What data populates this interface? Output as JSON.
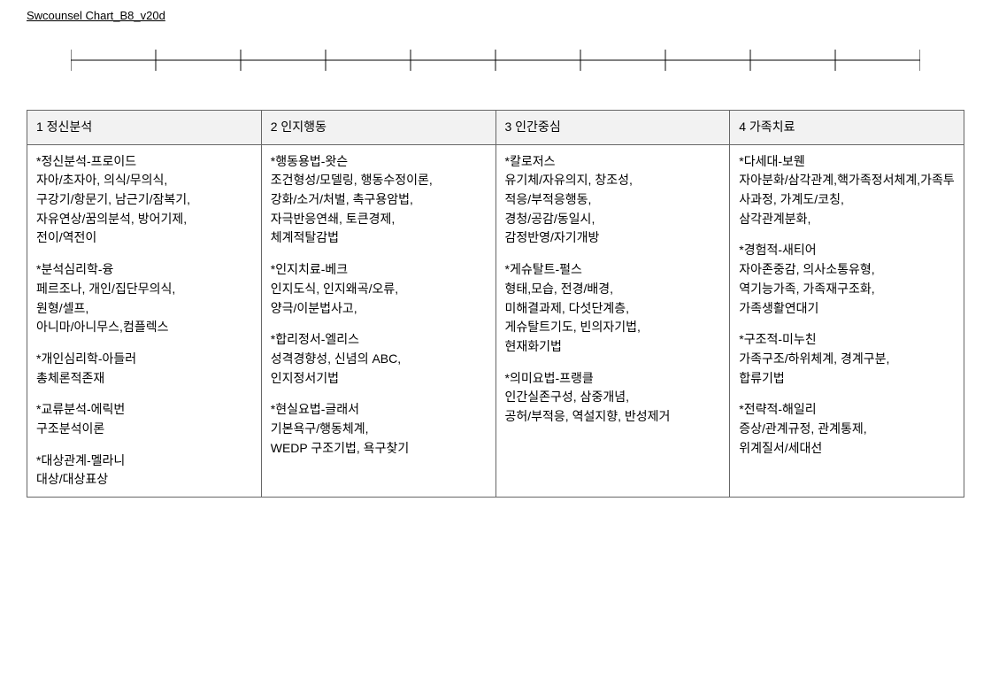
{
  "doc_title": "Swcounsel Chart_B8_v20d",
  "axis": {
    "tick_count": 11,
    "stroke": "#000000",
    "stroke_width": 1,
    "tick_height": 12
  },
  "table": {
    "border_color": "#666666",
    "header_bg": "#f2f2f2",
    "columns": [
      {
        "header": "1 정신분석"
      },
      {
        "header": "2 인지행동"
      },
      {
        "header": "3 인간중심"
      },
      {
        "header": "4 가족치료"
      }
    ],
    "cells": [
      [
        {
          "title": "*정신분석-프로이드",
          "lines": [
            "자아/초자아, 의식/무의식,",
            "구강기/항문기, 남근기/잠복기,",
            "자유연상/꿈의분석, 방어기제,",
            "전이/역전이"
          ]
        },
        {
          "title": "*분석심리학-융",
          "lines": [
            "페르조나, 개인/집단무의식,",
            "원형/셀프,",
            "아니마/아니무스,컴플렉스"
          ]
        },
        {
          "title": "*개인심리학-아들러",
          "lines": [
            "총체론적존재"
          ]
        },
        {
          "title": "*교류분석-에릭번",
          "lines": [
            "구조분석이론"
          ]
        },
        {
          "title": "*대상관계-멜라니",
          "lines": [
            "대상/대상표상"
          ]
        }
      ],
      [
        {
          "title": "*행동용법-왓슨",
          "lines": [
            "조건형성/모델링, 행동수정이론,",
            "강화/소거/처벌, 촉구용암법,",
            "자극반응연쇄, 토큰경제,",
            "체계적탈감법"
          ]
        },
        {
          "title": "*인지치료-베크",
          "lines": [
            "인지도식, 인지왜곡/오류,",
            "양극/이분법사고,"
          ]
        },
        {
          "title": "*합리정서-엘리스",
          "lines": [
            "성격경향성, 신념의 ABC,",
            "인지정서기법"
          ]
        },
        {
          "title": "*현실요법-글래서",
          "lines": [
            "기본욕구/행동체계,",
            "WEDP 구조기법, 욕구찾기"
          ]
        }
      ],
      [
        {
          "title": "*칼로저스",
          "lines": [
            "유기체/자유의지, 창조성,",
            "적응/부적응행동,",
            "경청/공감/동일시,",
            "감정반영/자기개방"
          ]
        },
        {
          "title": "*게슈탈트-펄스",
          "lines": [
            "형태,모습,  전경/배경,",
            "미해결과제, 다섯단계층,",
            "게슈탈트기도, 빈의자기법,",
            "현재화기법"
          ]
        },
        {
          "title": "*의미요법-프랭클",
          "lines": [
            "인간실존구성, 삼중개념,",
            "공허/부적응, 역설지향, 반성제거"
          ]
        }
      ],
      [
        {
          "title": "*다세대-보웬",
          "lines": [
            "자아분화/삼각관계,핵가족정서체계,가족투사과정,  가계도/코칭,",
            "삼각관계분화,"
          ]
        },
        {
          "title": "*경험적-새티어",
          "lines": [
            "자아존중감, 의사소통유형,",
            "역기능가족, 가족재구조화,",
            "가족생활연대기"
          ]
        },
        {
          "title": "*구조적-미누친",
          "lines": [
            "가족구조/하위체계, 경계구분,",
            "합류기법"
          ]
        },
        {
          "title": "*전략적-해일리",
          "lines": [
            "증상/관계규정, 관계통제,",
            "위계질서/세대선"
          ]
        }
      ]
    ]
  }
}
